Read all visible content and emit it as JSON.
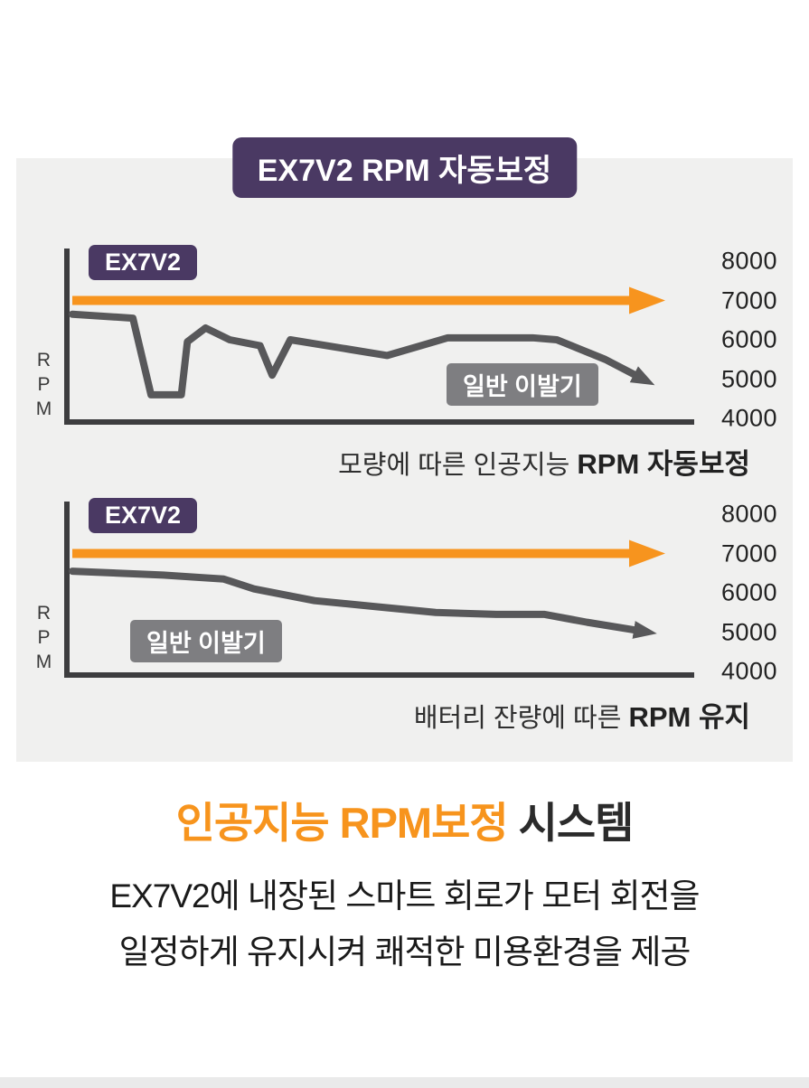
{
  "header": {
    "title": "EX7V2 RPM 자동보정"
  },
  "chart_data": [
    {
      "type": "line",
      "caption_regular": "모량에 따른 인공지능 ",
      "caption_bold": "RPM 자동보정",
      "ylabel": "RPM",
      "ylim": [
        4000,
        8000
      ],
      "yticks": [
        8000,
        7000,
        6000,
        5000,
        4000
      ],
      "legend_note": "orange arrow = EX7V2 constant RPM, gray jagged line = regular clipper",
      "series": [
        {
          "name": "EX7V2",
          "color": "#f7941e",
          "type": "constant",
          "value": 7000
        },
        {
          "name": "일반 이발기",
          "color": "#58585a",
          "type": "points",
          "points": [
            [
              0,
              6650
            ],
            [
              10,
              6550
            ],
            [
              13,
              4600
            ],
            [
              18,
              4600
            ],
            [
              19,
              5950
            ],
            [
              22,
              6300
            ],
            [
              26,
              6000
            ],
            [
              31,
              5850
            ],
            [
              33,
              5100
            ],
            [
              36,
              6000
            ],
            [
              46,
              5750
            ],
            [
              52,
              5600
            ],
            [
              62,
              6050
            ],
            [
              76,
              6050
            ],
            [
              80,
              6000
            ],
            [
              88,
              5500
            ],
            [
              93,
              5100
            ]
          ]
        }
      ]
    },
    {
      "type": "line",
      "caption_regular": "배터리 잔량에 따른 ",
      "caption_bold": "RPM 유지",
      "ylabel": "RPM",
      "ylim": [
        4000,
        8000
      ],
      "yticks": [
        8000,
        7000,
        6000,
        5000,
        4000
      ],
      "legend_note": "orange arrow = EX7V2 constant RPM, gray declining line = regular clipper",
      "series": [
        {
          "name": "EX7V2",
          "color": "#f7941e",
          "type": "constant",
          "value": 7000
        },
        {
          "name": "일반 이발기",
          "color": "#58585a",
          "type": "points",
          "points": [
            [
              0,
              6550
            ],
            [
              15,
              6450
            ],
            [
              25,
              6350
            ],
            [
              30,
              6100
            ],
            [
              40,
              5800
            ],
            [
              50,
              5650
            ],
            [
              60,
              5500
            ],
            [
              70,
              5450
            ],
            [
              78,
              5450
            ],
            [
              85,
              5250
            ],
            [
              93,
              5050
            ]
          ]
        }
      ]
    }
  ],
  "footer": {
    "heading_orange": "인공지능 RPM보정",
    "heading_dark": " 시스템",
    "body_line1": "EX7V2에 내장된 스마트 회로가 모터 회전을",
    "body_line2": "일정하게 유지시켜 쾌적한 미용환경을 제공"
  },
  "colors": {
    "accent_orange": "#f7941d",
    "brand_purple": "#4a3963",
    "line_gray": "#58585a",
    "badge_gray": "#7e7e81",
    "panel_gray": "#f0f0ef"
  }
}
